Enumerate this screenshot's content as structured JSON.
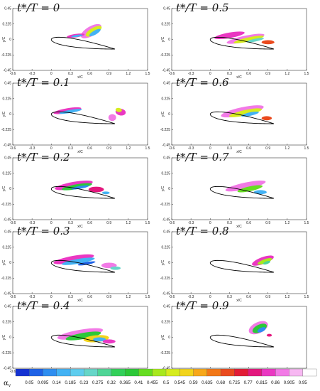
{
  "panels": [
    {
      "time": "0"
    },
    {
      "time": "0.5"
    },
    {
      "time": "0.1"
    },
    {
      "time": "0.6"
    },
    {
      "time": "0.2"
    },
    {
      "time": "0.7"
    },
    {
      "time": "0.3"
    },
    {
      "time": "0.8"
    },
    {
      "time": "0.4"
    },
    {
      "time": "0.9"
    }
  ],
  "title_prefix": "t*/T = ",
  "axes": {
    "xlabel": "x/C",
    "ylabel": "y/C",
    "xticks": [
      "-0.6",
      "-0.3",
      "0",
      "0.3",
      "0.6",
      "0.9",
      "1.2",
      "1.5"
    ],
    "yticks": [
      "0.45",
      "0.225",
      "0",
      "-0.225",
      "-0.45"
    ],
    "xlim": [
      -0.6,
      1.5
    ],
    "ylim": [
      -0.45,
      0.45
    ]
  },
  "colorbar": {
    "symbol": "α",
    "subscript": "v",
    "levels": [
      "0.05",
      "0.095",
      "0.14",
      "0.185",
      "0.23",
      "0.275",
      "0.32",
      "0.365",
      "0.41",
      "0.455",
      "0.5",
      "0.545",
      "0.59",
      "0.635",
      "0.68",
      "0.725",
      "0.77",
      "0.815",
      "0.86",
      "0.905",
      "0.95"
    ],
    "colors": [
      "#1432d2",
      "#1f62e6",
      "#2e8ef0",
      "#43b2f4",
      "#5fcdee",
      "#66d6c8",
      "#4fd596",
      "#33d05a",
      "#2cc838",
      "#66dd22",
      "#a8e81e",
      "#d6ec1e",
      "#f2d41c",
      "#f7a81a",
      "#f27818",
      "#ea4a1e",
      "#e21c36",
      "#e3187e",
      "#ea38c2",
      "#f27ae6",
      "#f7b8f2",
      "#ffffff"
    ]
  }
}
